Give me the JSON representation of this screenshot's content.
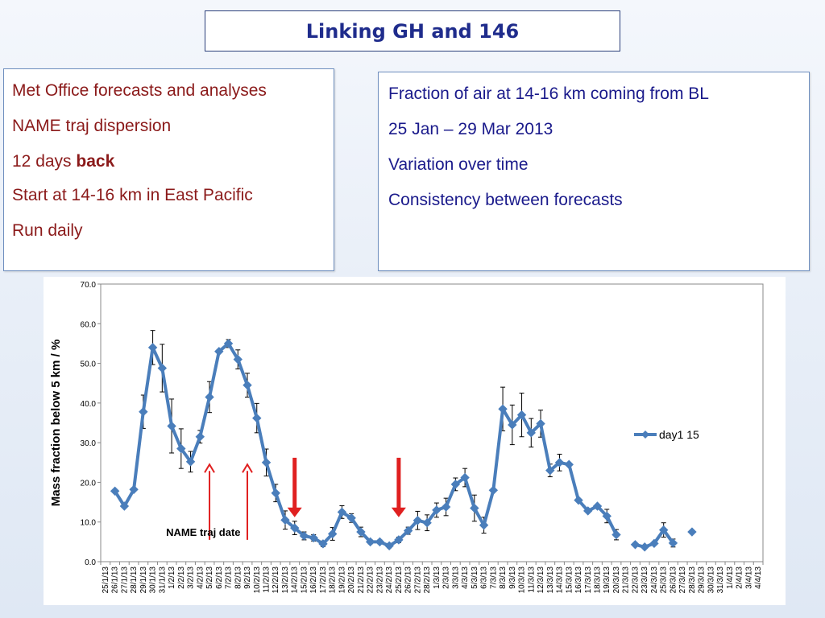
{
  "title": "Linking GH and 146",
  "left_panel": {
    "line1": "Met Office forecasts and analyses",
    "line2": "NAME traj dispersion",
    "line3_prefix": "12 days ",
    "line3_bold": "back",
    "line4": "Start at 14-16 km in East Pacific",
    "line5": "Run daily"
  },
  "right_panel": {
    "line1": "Fraction of air at 14-16 km coming from BL",
    "line2": "25 Jan – 29 Mar 2013",
    "line3": "Variation over time",
    "line4": "Consistency between forecasts"
  },
  "chart_data": {
    "type": "line",
    "ylabel": "Mass fraction below 5 km / %",
    "ylim": [
      0,
      70
    ],
    "yticks": [
      "0.0",
      "10.0",
      "20.0",
      "30.0",
      "40.0",
      "50.0",
      "60.0",
      "70.0"
    ],
    "categories": [
      "25/1/13",
      "26/1/13",
      "27/1/13",
      "28/1/13",
      "29/1/13",
      "30/1/13",
      "31/1/13",
      "1/2/13",
      "2/2/13",
      "3/2/13",
      "4/2/13",
      "5/2/13",
      "6/2/13",
      "7/2/13",
      "8/2/13",
      "9/2/13",
      "10/2/13",
      "11/2/13",
      "12/2/13",
      "13/2/13",
      "14/2/13",
      "15/2/13",
      "16/2/13",
      "17/2/13",
      "18/2/13",
      "19/2/13",
      "20/2/13",
      "21/2/13",
      "22/2/13",
      "23/2/13",
      "24/2/13",
      "25/2/13",
      "26/2/13",
      "27/2/13",
      "28/2/13",
      "1/3/13",
      "2/3/13",
      "3/3/13",
      "4/3/13",
      "5/3/13",
      "6/3/13",
      "7/3/13",
      "8/3/13",
      "9/3/13",
      "10/3/13",
      "11/3/13",
      "12/3/13",
      "13/3/13",
      "14/3/13",
      "15/3/13",
      "16/3/13",
      "17/3/13",
      "18/3/13",
      "19/3/13",
      "20/3/13",
      "21/3/13",
      "22/3/13",
      "23/3/13",
      "24/3/13",
      "25/3/13",
      "26/3/13",
      "27/3/13",
      "28/3/13",
      "29/3/13",
      "30/3/13",
      "31/3/13",
      "1/4/13",
      "2/4/13",
      "3/4/13",
      "4/4/13"
    ],
    "tick_labels": [
      "25/1/13",
      "26/1/13",
      "27/1/13",
      "28/1/13",
      "29/1/13",
      "30/1/13",
      "31/1/13",
      "1/2/13",
      "2/2/13",
      "3/2/13",
      "4/2/13",
      "5/2/13",
      "6/2/13",
      "7/2/13",
      "8/2/13",
      "9/2/13",
      "10/2/13",
      "11/2/13",
      "12/2/13",
      "13/2/13",
      "14/2/13",
      "15/2/13",
      "16/2/13",
      "17/2/13",
      "18/2/13",
      "19/2/13",
      "20/2/13",
      "21/2/13",
      "22/2/13",
      "23/2/13",
      "24/2/13",
      "25/2/13",
      "26/2/13",
      "27/2/13",
      "28/2/13",
      "1/3/13",
      "2/3/13",
      "3/3/13",
      "4/3/13",
      "5/3/13",
      "6/3/13",
      "7/3/13",
      "8/3/13",
      "9/3/13",
      "10/3/13",
      "11/3/13",
      "12/3/13",
      "13/3/13",
      "14/3/13",
      "15/3/13",
      "16/3/13",
      "17/3/13",
      "18/3/13",
      "19/3/13",
      "20/3/13",
      "21/3/13",
      "22/3/13",
      "23/3/13",
      "24/3/13",
      "25/3/13",
      "26/3/13",
      "27/3/13",
      "28/3/13",
      "29/3/13",
      "30/3/13",
      "31/3/13",
      "1/4/13",
      "2/4/13",
      "3/4/13",
      "4/4/13"
    ],
    "series": [
      {
        "name": "day1 15",
        "color": "#4a7ebb",
        "values": [
          null,
          17.8,
          14.0,
          18.2,
          37.8,
          54.0,
          48.8,
          34.2,
          28.5,
          25.2,
          31.5,
          41.5,
          53.0,
          55.0,
          51.0,
          44.5,
          36.2,
          25.0,
          17.3,
          10.5,
          8.5,
          6.5,
          6.0,
          4.5,
          7.0,
          12.5,
          11.0,
          7.5,
          5.0,
          5.0,
          4.0,
          5.5,
          7.8,
          10.4,
          9.8,
          13.0,
          13.8,
          19.5,
          21.2,
          13.5,
          9.2,
          18.0,
          38.5,
          34.5,
          37.0,
          32.5,
          34.8,
          23.0,
          25.0,
          24.5,
          15.5,
          12.8,
          14.0,
          11.5,
          6.8,
          null,
          4.3,
          3.7,
          4.6,
          8.0,
          4.7,
          null,
          7.5,
          null,
          null,
          null,
          null,
          null,
          null,
          null
        ],
        "errors": [
          null,
          0,
          0,
          0,
          4.2,
          4.3,
          6.0,
          6.8,
          5.0,
          2.6,
          1.6,
          3.9,
          0,
          1.0,
          2.4,
          3.0,
          3.7,
          3.4,
          2.2,
          2.3,
          1.7,
          1.0,
          0.8,
          0.7,
          1.6,
          1.6,
          1.1,
          1.2,
          0.5,
          0.5,
          0.5,
          0.7,
          0.9,
          2.3,
          2.0,
          1.8,
          2.2,
          1.6,
          2.3,
          3.3,
          2.0,
          0,
          5.5,
          5.0,
          5.5,
          3.6,
          3.4,
          1.6,
          2.1,
          0,
          0,
          0,
          0,
          1.7,
          1.3,
          null,
          0,
          0,
          0,
          1.8,
          1.0,
          null,
          0,
          null,
          null,
          null,
          null,
          null,
          null,
          null
        ]
      }
    ],
    "annotations": [
      {
        "type": "arrow",
        "style": "thin",
        "color": "#e02020",
        "category": "5/2/13"
      },
      {
        "type": "arrow",
        "style": "thin",
        "color": "#e02020",
        "category": "9/2/13"
      },
      {
        "type": "arrow",
        "style": "thick",
        "color": "#e02020",
        "category": "14/2/13"
      },
      {
        "type": "arrow",
        "style": "thick",
        "color": "#e02020",
        "category": "25/2/13"
      },
      {
        "type": "text",
        "text": "NAME traj date"
      }
    ],
    "legend": "right",
    "grid": false
  }
}
